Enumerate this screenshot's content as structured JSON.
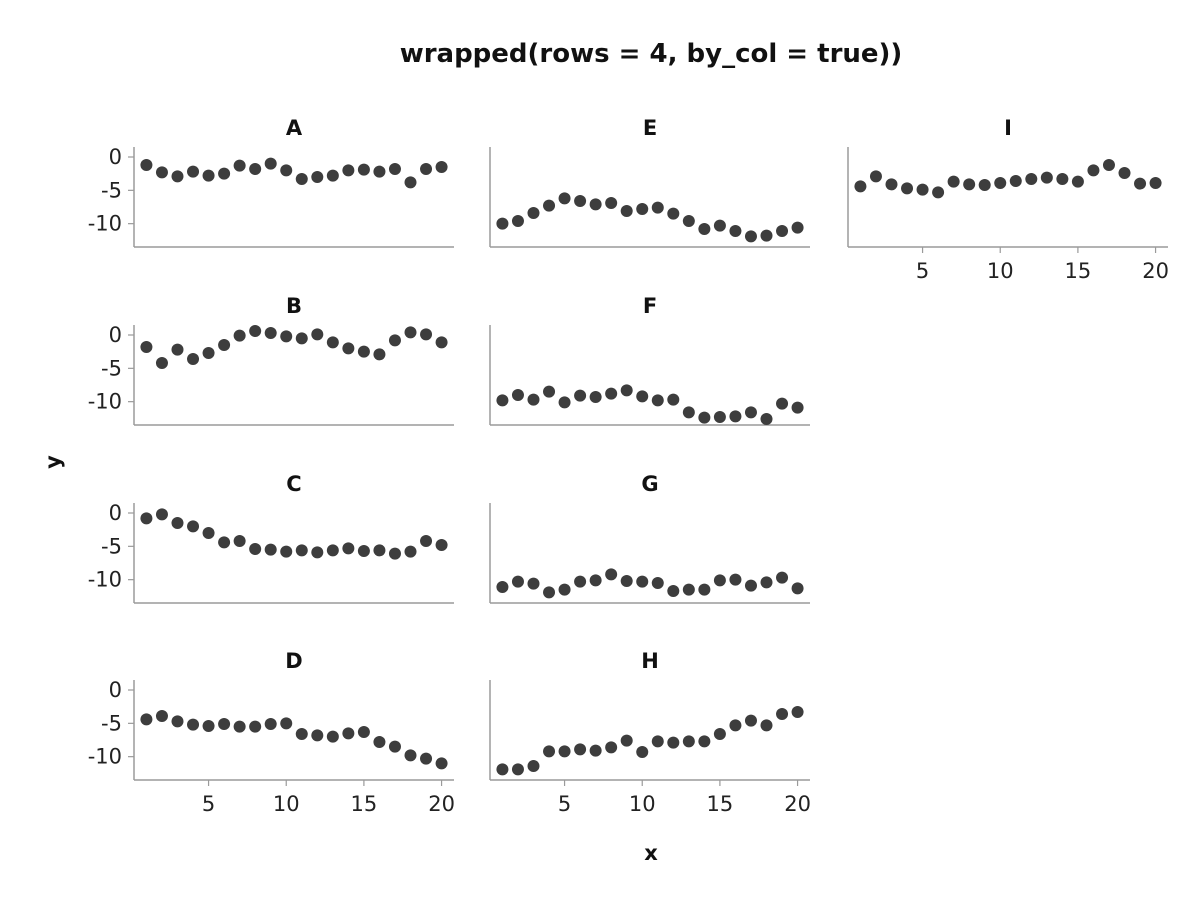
{
  "chart_data": {
    "type": "scatter",
    "title": "wrapped(rows = 4, by_col = true))",
    "xlabel": "x",
    "ylabel": "y",
    "layout": {
      "rows": 4,
      "columns": 3,
      "by_col": true
    },
    "xlim": [
      0.2,
      20.8
    ],
    "ylim": [
      -13.5,
      1.5
    ],
    "xticks": [
      5,
      10,
      15,
      20
    ],
    "yticks": [
      0,
      -5,
      -10
    ],
    "grid": false,
    "legend": "none",
    "point_color": "#3d3d3d",
    "x": [
      1,
      2,
      3,
      4,
      5,
      6,
      7,
      8,
      9,
      10,
      11,
      12,
      13,
      14,
      15,
      16,
      17,
      18,
      19,
      20
    ],
    "facets": [
      {
        "name": "A",
        "values": [
          -1.2,
          -2.3,
          -2.9,
          -2.2,
          -2.8,
          -2.5,
          -1.3,
          -1.8,
          -1.0,
          -2.0,
          -3.3,
          -3.0,
          -2.8,
          -2.0,
          -1.9,
          -2.2,
          -1.8,
          -3.8,
          -1.8,
          -1.5
        ]
      },
      {
        "name": "B",
        "values": [
          -1.8,
          -4.2,
          -2.2,
          -3.6,
          -2.7,
          -1.5,
          -0.1,
          0.6,
          0.3,
          -0.2,
          -0.5,
          0.1,
          -1.1,
          -2.0,
          -2.5,
          -2.9,
          -0.8,
          0.4,
          0.1,
          -1.1
        ]
      },
      {
        "name": "C",
        "values": [
          -0.8,
          -0.2,
          -1.5,
          -2.0,
          -3.0,
          -4.4,
          -4.2,
          -5.4,
          -5.5,
          -5.8,
          -5.6,
          -5.9,
          -5.6,
          -5.3,
          -5.7,
          -5.6,
          -6.1,
          -5.8,
          -4.2,
          -4.8
        ]
      },
      {
        "name": "D",
        "values": [
          -4.4,
          -3.9,
          -4.7,
          -5.2,
          -5.4,
          -5.1,
          -5.5,
          -5.5,
          -5.1,
          -5.0,
          -6.6,
          -6.8,
          -7.0,
          -6.5,
          -6.3,
          -7.8,
          -8.5,
          -9.8,
          -10.3,
          -11.0
        ]
      },
      {
        "name": "E",
        "values": [
          -10.0,
          -9.6,
          -8.4,
          -7.3,
          -6.2,
          -6.6,
          -7.1,
          -6.9,
          -8.1,
          -7.8,
          -7.6,
          -8.5,
          -9.6,
          -10.8,
          -10.3,
          -11.1,
          -11.9,
          -11.8,
          -11.1,
          -10.6
        ]
      },
      {
        "name": "F",
        "values": [
          -9.8,
          -9.0,
          -9.7,
          -8.5,
          -10.1,
          -9.1,
          -9.3,
          -8.8,
          -8.3,
          -9.2,
          -9.8,
          -9.7,
          -11.6,
          -12.4,
          -12.3,
          -12.2,
          -11.6,
          -12.6,
          -10.3,
          -10.9
        ]
      },
      {
        "name": "G",
        "values": [
          -11.1,
          -10.3,
          -10.6,
          -11.9,
          -11.5,
          -10.3,
          -10.1,
          -9.2,
          -10.2,
          -10.3,
          -10.5,
          -11.7,
          -11.5,
          -11.5,
          -10.1,
          -10.0,
          -10.9,
          -10.4,
          -9.7,
          -11.3
        ]
      },
      {
        "name": "H",
        "values": [
          -11.9,
          -11.9,
          -11.4,
          -9.2,
          -9.2,
          -8.9,
          -9.1,
          -8.6,
          -7.6,
          -9.3,
          -7.7,
          -7.9,
          -7.7,
          -7.7,
          -6.6,
          -5.3,
          -4.6,
          -5.3,
          -3.6,
          -3.3
        ]
      },
      {
        "name": "I",
        "values": [
          -4.4,
          -2.9,
          -4.1,
          -4.7,
          -4.9,
          -5.3,
          -3.7,
          -4.1,
          -4.2,
          -3.9,
          -3.6,
          -3.3,
          -3.1,
          -3.3,
          -3.7,
          -2.0,
          -1.2,
          -2.4,
          -4.0,
          -3.9
        ]
      }
    ]
  }
}
